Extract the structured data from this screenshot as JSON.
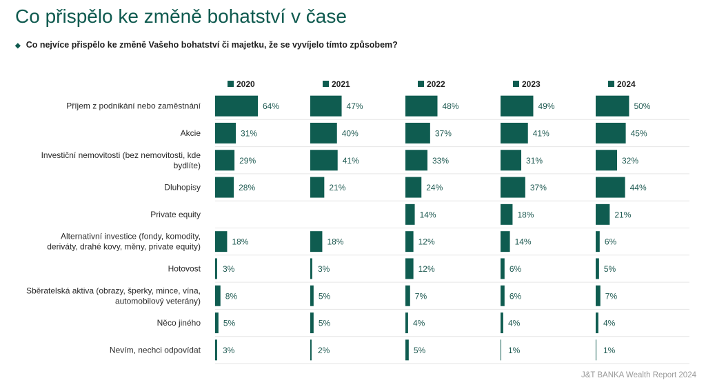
{
  "title": "Co přispělo ke změně bohatství v čase",
  "subtitle": "Co nejvíce přispělo ke změně Vašeho bohatství či majetku, že se vyvíjelo tímto způsobem?",
  "footer": "J&T BANKA Wealth Report 2024",
  "colors": {
    "bar": "#0f5c50",
    "title": "#0f5a4f",
    "grid": "#e6e6e6"
  },
  "chart_data": {
    "type": "bar",
    "orientation": "horizontal",
    "categories": [
      [
        "Příjem z podnikání nebo zaměstnání"
      ],
      [
        "Akcie"
      ],
      [
        "Investiční nemovitosti (bez nemovitosti, kde",
        "bydlíte)"
      ],
      [
        "Dluhopisy"
      ],
      [
        "Private equity"
      ],
      [
        "Alternativní investice (fondy, komodity,",
        "deriváty, drahé kovy, měny, private equity)"
      ],
      [
        "Hotovost"
      ],
      [
        "Sběratelská aktiva (obrazy, šperky, mince, vína,",
        "automobilový veterány)"
      ],
      [
        "Něco jiného"
      ],
      [
        "Nevím, nechci odpovídat"
      ]
    ],
    "series": [
      {
        "name": "2020",
        "values": [
          64,
          31,
          29,
          28,
          null,
          18,
          3,
          8,
          5,
          3
        ]
      },
      {
        "name": "2021",
        "values": [
          47,
          40,
          41,
          21,
          null,
          18,
          3,
          5,
          5,
          2
        ]
      },
      {
        "name": "2022",
        "values": [
          48,
          37,
          33,
          24,
          14,
          12,
          12,
          7,
          4,
          5
        ]
      },
      {
        "name": "2023",
        "values": [
          49,
          41,
          31,
          37,
          18,
          14,
          6,
          6,
          4,
          1
        ]
      },
      {
        "name": "2024",
        "values": [
          50,
          45,
          32,
          44,
          21,
          6,
          5,
          7,
          4,
          1
        ]
      }
    ],
    "unit": "%",
    "legend": "top",
    "grid": true
  }
}
